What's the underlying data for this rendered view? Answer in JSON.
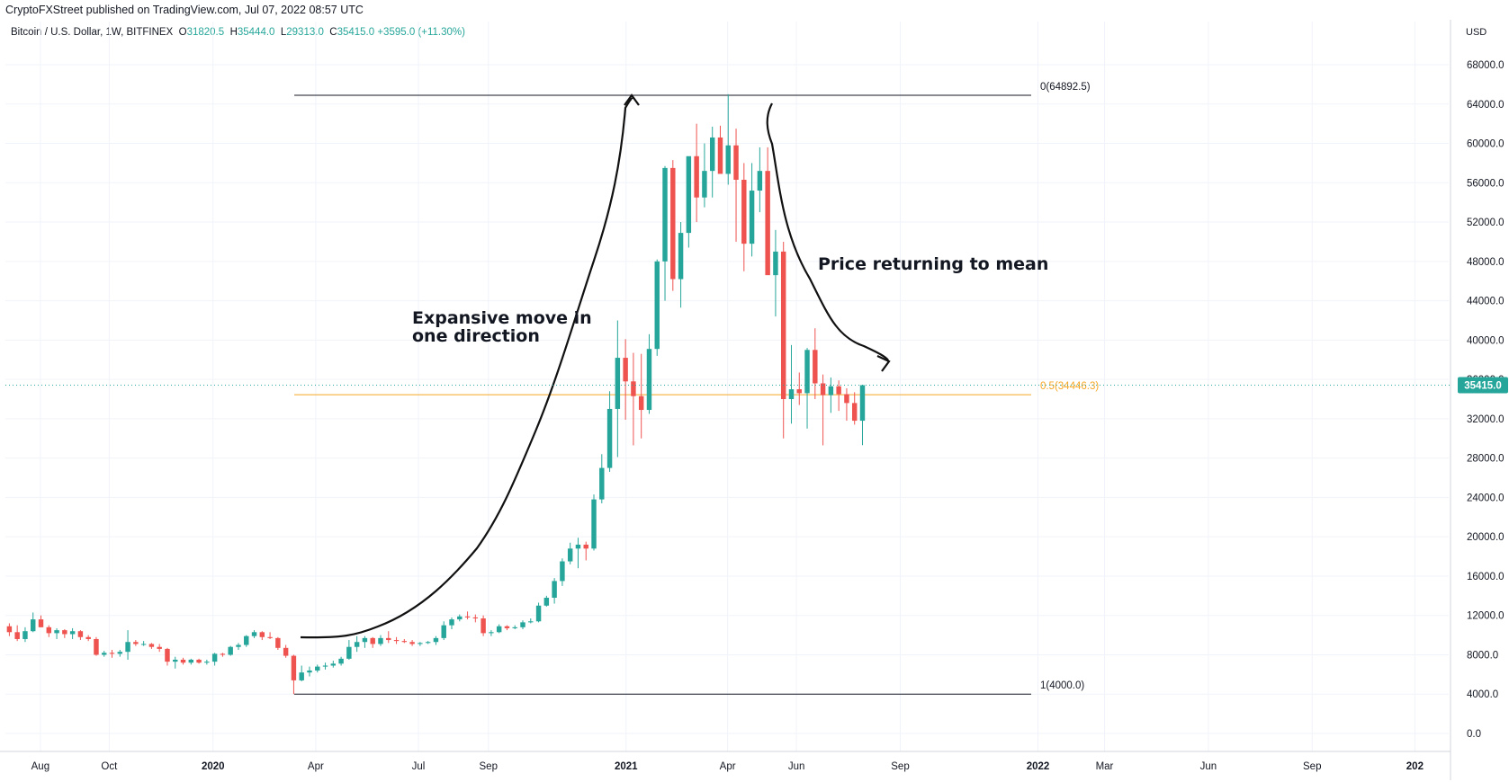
{
  "header": {
    "publisher_line": "CryptoFXStreet published on TradingView.com, Jul 07, 2022 08:57 UTC",
    "symbol": "Bitcoin / U.S. Dollar, 1W, BITFINEX",
    "ohlc": {
      "o_label": "O",
      "o": "31820.5",
      "h_label": "H",
      "h": "35444.0",
      "l_label": "L",
      "l": "29313.0",
      "c_label": "C",
      "c": "35415.0",
      "change": "+3595.0 (+11.30%)"
    }
  },
  "colors": {
    "up": "#26a69a",
    "down": "#ef5350",
    "fib_mid": "#f5a623",
    "fib_line": "#131722",
    "price_tag": "#26a69a"
  },
  "chart_data": {
    "type": "candlestick",
    "title": "Bitcoin / U.S. Dollar, 1W, BITFINEX",
    "currency": "USD",
    "ylim": [
      0,
      70000
    ],
    "y_ticks": [
      0,
      4000,
      8000,
      12000,
      16000,
      20000,
      24000,
      28000,
      32000,
      36000,
      40000,
      44000,
      48000,
      52000,
      56000,
      60000,
      64000,
      68000
    ],
    "y_tick_labels": [
      "0.0",
      "4000.0",
      "8000.0",
      "12000.0",
      "16000.0",
      "20000.0",
      "24000.0",
      "28000.0",
      "32000.0",
      "36000.0",
      "40000.0",
      "44000.0",
      "48000.0",
      "52000.0",
      "56000.0",
      "60000.0",
      "64000.0",
      "68000.0"
    ],
    "x_range": [
      "2019-07-01",
      "2022-12-31"
    ],
    "x_ticks": [
      {
        "date": "2019-08-01",
        "label": "Aug",
        "bold": false
      },
      {
        "date": "2019-10-01",
        "label": "Oct",
        "bold": false
      },
      {
        "date": "2020-01-01",
        "label": "2020",
        "bold": true
      },
      {
        "date": "2020-04-01",
        "label": "Apr",
        "bold": false
      },
      {
        "date": "2020-07-01",
        "label": "Jul",
        "bold": false
      },
      {
        "date": "2020-09-01",
        "label": "Sep",
        "bold": false
      },
      {
        "date": "2021-01-01",
        "label": "2021",
        "bold": true
      },
      {
        "date": "2021-04-01",
        "label": "Apr",
        "bold": false
      },
      {
        "date": "2021-06-01",
        "label": "Jun",
        "bold": false
      },
      {
        "date": "2021-09-01",
        "label": "Sep",
        "bold": false
      },
      {
        "date": "2022-01-01",
        "label": "2022",
        "bold": true
      },
      {
        "date": "2022-03-01",
        "label": "Mar",
        "bold": false
      },
      {
        "date": "2022-06-01",
        "label": "Jun",
        "bold": false
      },
      {
        "date": "2022-09-01",
        "label": "Sep",
        "bold": false
      },
      {
        "date": "2022-12-01",
        "label": "202",
        "bold": true
      }
    ],
    "weekly_candles_ohlc": [
      [
        10900,
        11200,
        9900,
        10300
      ],
      [
        10300,
        11000,
        9400,
        9600
      ],
      [
        9600,
        10800,
        9300,
        10400
      ],
      [
        10400,
        12300,
        10300,
        11600
      ],
      [
        11600,
        12000,
        10800,
        10800
      ],
      [
        10800,
        11000,
        9800,
        10200
      ],
      [
        10200,
        10700,
        9600,
        10500
      ],
      [
        10500,
        10600,
        9700,
        10100
      ],
      [
        10100,
        10700,
        9600,
        10400
      ],
      [
        10400,
        10500,
        9500,
        9800
      ],
      [
        9800,
        10000,
        9400,
        9600
      ],
      [
        9600,
        9800,
        7900,
        8000
      ],
      [
        8000,
        8400,
        7800,
        8200
      ],
      [
        8200,
        8500,
        7700,
        8100
      ],
      [
        8100,
        8500,
        7800,
        8300
      ],
      [
        8300,
        10500,
        7500,
        9300
      ],
      [
        9300,
        9500,
        8900,
        9100
      ],
      [
        9100,
        9400,
        8900,
        9100
      ],
      [
        9100,
        9200,
        8600,
        8800
      ],
      [
        8800,
        9100,
        8300,
        8600
      ],
      [
        8600,
        8700,
        6900,
        7300
      ],
      [
        7300,
        7800,
        6600,
        7500
      ],
      [
        7500,
        7700,
        7000,
        7200
      ],
      [
        7200,
        7600,
        7000,
        7500
      ],
      [
        7500,
        7600,
        7100,
        7200
      ],
      [
        7200,
        7500,
        7000,
        7300
      ],
      [
        7300,
        8200,
        6900,
        8100
      ],
      [
        8100,
        8200,
        7800,
        8000
      ],
      [
        8000,
        8900,
        7900,
        8800
      ],
      [
        8800,
        9200,
        8500,
        9000
      ],
      [
        9000,
        10000,
        8800,
        9900
      ],
      [
        9900,
        10500,
        9700,
        10300
      ],
      [
        10300,
        10400,
        9500,
        9800
      ],
      [
        9800,
        10300,
        9600,
        9700
      ],
      [
        9700,
        9800,
        8500,
        8700
      ],
      [
        8700,
        9000,
        7700,
        7900
      ],
      [
        7900,
        8000,
        4000,
        5400
      ],
      [
        5400,
        6900,
        5300,
        6200
      ],
      [
        6200,
        6800,
        5800,
        6400
      ],
      [
        6400,
        7000,
        6200,
        6800
      ],
      [
        6800,
        7200,
        6500,
        6900
      ],
      [
        6900,
        7400,
        6700,
        7100
      ],
      [
        7100,
        7800,
        6900,
        7600
      ],
      [
        7600,
        9500,
        7500,
        8800
      ],
      [
        8800,
        9900,
        8300,
        9300
      ],
      [
        9300,
        9900,
        8700,
        9700
      ],
      [
        9700,
        9800,
        8700,
        9100
      ],
      [
        9100,
        10000,
        8900,
        9700
      ],
      [
        9700,
        10400,
        9200,
        9500
      ],
      [
        9500,
        9800,
        9100,
        9400
      ],
      [
        9400,
        9600,
        9200,
        9300
      ],
      [
        9300,
        9500,
        8900,
        9100
      ],
      [
        9100,
        9300,
        8900,
        9200
      ],
      [
        9200,
        9400,
        9100,
        9300
      ],
      [
        9300,
        9900,
        9000,
        9700
      ],
      [
        9700,
        11400,
        9500,
        11000
      ],
      [
        11000,
        11800,
        10600,
        11600
      ],
      [
        11600,
        12100,
        11400,
        11900
      ],
      [
        11900,
        12400,
        11600,
        11800
      ],
      [
        11800,
        12100,
        11300,
        11700
      ],
      [
        11700,
        12000,
        9900,
        10200
      ],
      [
        10200,
        10500,
        9900,
        10300
      ],
      [
        10300,
        11100,
        10200,
        10900
      ],
      [
        10900,
        11000,
        10500,
        10700
      ],
      [
        10700,
        11000,
        10600,
        10800
      ],
      [
        10800,
        11500,
        10600,
        11300
      ],
      [
        11300,
        11700,
        11200,
        11400
      ],
      [
        11400,
        13300,
        11300,
        13000
      ],
      [
        13000,
        14000,
        12900,
        13800
      ],
      [
        13800,
        15800,
        13200,
        15500
      ],
      [
        15500,
        17800,
        15000,
        17500
      ],
      [
        17500,
        19400,
        17200,
        18800
      ],
      [
        18800,
        19900,
        16800,
        19200
      ],
      [
        19200,
        19500,
        17600,
        18800
      ],
      [
        18800,
        24300,
        18600,
        23800
      ],
      [
        23800,
        28400,
        23400,
        27000
      ],
      [
        27000,
        34800,
        26600,
        33000
      ],
      [
        33000,
        42000,
        28100,
        38200
      ],
      [
        38200,
        40100,
        31900,
        35800
      ],
      [
        35800,
        38700,
        29300,
        34300
      ],
      [
        34300,
        38600,
        30000,
        32900
      ],
      [
        32900,
        40600,
        32500,
        39100
      ],
      [
        39100,
        48200,
        38400,
        48000
      ],
      [
        48000,
        57700,
        44000,
        57500
      ],
      [
        57500,
        58300,
        45000,
        46200
      ],
      [
        46200,
        52000,
        43300,
        50900
      ],
      [
        50900,
        58000,
        49400,
        58700
      ],
      [
        58700,
        62000,
        52000,
        54500
      ],
      [
        54500,
        60000,
        53500,
        57200
      ],
      [
        57200,
        61700,
        54500,
        60600
      ],
      [
        60600,
        61800,
        58900,
        56900
      ],
      [
        56900,
        65000,
        55800,
        59800
      ],
      [
        59800,
        61500,
        50000,
        56300
      ],
      [
        56300,
        58000,
        47000,
        49800
      ],
      [
        49800,
        58000,
        48500,
        55200
      ],
      [
        55200,
        59600,
        53000,
        57200
      ],
      [
        57200,
        59600,
        47000,
        46600
      ],
      [
        46600,
        51200,
        42400,
        49000
      ],
      [
        49000,
        50000,
        30000,
        34000
      ],
      [
        34000,
        39500,
        31500,
        35000
      ],
      [
        35000,
        36700,
        33400,
        34600
      ],
      [
        34600,
        39200,
        31000,
        39000
      ],
      [
        39000,
        41200,
        34000,
        35600
      ],
      [
        35600,
        36500,
        29300,
        34400
      ],
      [
        34400,
        36200,
        32600,
        35300
      ],
      [
        35300,
        35900,
        32800,
        34500
      ],
      [
        34500,
        35100,
        31800,
        33600
      ],
      [
        33600,
        34700,
        31400,
        31800
      ],
      [
        31800,
        35444,
        29313,
        35415
      ]
    ],
    "first_candle_date": "2019-07-01",
    "last_price": "35415.0",
    "fibonacci": [
      {
        "level": "0",
        "price": 64892.5,
        "label": "0(64892.5)"
      },
      {
        "level": "0.5",
        "price": 34446.3,
        "label": "0.5(34446.3)"
      },
      {
        "level": "1",
        "price": 4000.0,
        "label": "1(4000.0)"
      }
    ],
    "fib_range": {
      "start_date": "2020-03-13",
      "end_date": "2021-12-26"
    },
    "annotations": [
      {
        "lines": [
          "Expansive move in",
          "one direction"
        ]
      },
      {
        "lines": [
          "Price returning to mean"
        ]
      }
    ]
  }
}
